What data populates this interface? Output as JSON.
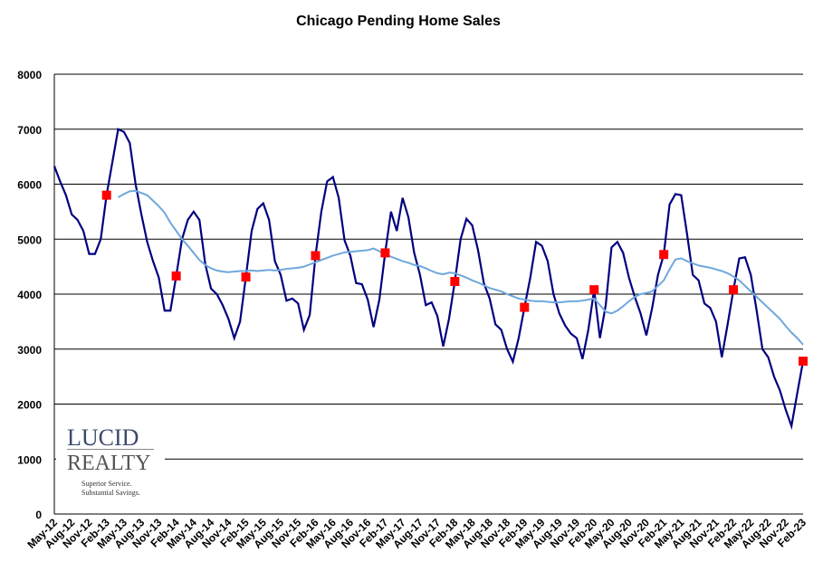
{
  "chart_data": {
    "type": "line",
    "title": "Chicago Pending Home Sales",
    "categories": [
      "May-12",
      null,
      null,
      "Aug-12",
      null,
      null,
      "Nov-12",
      null,
      null,
      "Feb-13",
      null,
      null,
      "May-13",
      null,
      null,
      "Aug-13",
      null,
      null,
      "Nov-13",
      null,
      null,
      "Feb-14",
      null,
      null,
      "May-14",
      null,
      null,
      "Aug-14",
      null,
      null,
      "Nov-14",
      null,
      null,
      "Feb-15",
      null,
      null,
      "May-15",
      null,
      null,
      "Aug-15",
      null,
      null,
      "Nov-15",
      null,
      null,
      "Feb-16",
      null,
      null,
      "May-16",
      null,
      null,
      "Aug-16",
      null,
      null,
      "Nov-16",
      null,
      null,
      "Feb-17",
      null,
      null,
      "May-17",
      null,
      null,
      "Aug-17",
      null,
      null,
      "Nov-17",
      null,
      null,
      "Feb-18",
      null,
      null,
      "May-18",
      null,
      null,
      "Aug-18",
      null,
      null,
      "Nov-18",
      null,
      null,
      "Feb-19",
      null,
      null,
      "May-19",
      null,
      null,
      "Aug-19",
      null,
      null,
      "Nov-19",
      null,
      null,
      "Feb-20",
      null,
      null,
      "May-20",
      null,
      null,
      "Aug-20",
      null,
      null,
      "Nov-20",
      null,
      null,
      "Feb-21",
      null,
      null,
      "May-21",
      null,
      null,
      "Aug-21",
      null,
      null,
      "Nov-21",
      null,
      null,
      "Feb-22",
      null,
      null,
      "May-22",
      null,
      null,
      "Aug-22",
      null,
      null,
      "Nov-22",
      null,
      null,
      "Feb-23"
    ],
    "series": [
      {
        "color": "#000080",
        "values": [
          6330,
          6050,
          5800,
          5450,
          5350,
          5150,
          4730,
          4730,
          5000,
          5800,
          6400,
          7000,
          6950,
          6750,
          6000,
          5450,
          4950,
          4600,
          4300,
          3700,
          3700,
          4330,
          5000,
          5350,
          5500,
          5350,
          4550,
          4100,
          4000,
          3800,
          3550,
          3200,
          3500,
          4310,
          5150,
          5550,
          5650,
          5350,
          4600,
          4350,
          3880,
          3920,
          3830,
          3350,
          3620,
          4700,
          5500,
          6050,
          6130,
          5750,
          4980,
          4700,
          4200,
          4180,
          3900,
          3400,
          3900,
          4750,
          5500,
          5150,
          5750,
          5400,
          4750,
          4350,
          3800,
          3850,
          3600,
          3050,
          3550,
          4230,
          5000,
          5370,
          5250,
          4800,
          4200,
          3920,
          3450,
          3350,
          3000,
          2770,
          3200,
          3760,
          4300,
          4950,
          4880,
          4600,
          4000,
          3650,
          3430,
          3280,
          3200,
          2820,
          3350,
          4080,
          3200,
          3800,
          4850,
          4950,
          4750,
          4300,
          3950,
          3650,
          3250,
          3750,
          4350,
          4720,
          5630,
          5820,
          5800,
          5100,
          4350,
          4250,
          3830,
          3750,
          3500,
          2850,
          3450,
          4080,
          4650,
          4670,
          4350,
          3700,
          3000,
          2850,
          2500,
          2250,
          1900,
          1600,
          2200,
          2780
        ]
      },
      {
        "color": "#6fa8dc",
        "values": [
          null,
          null,
          null,
          null,
          null,
          null,
          null,
          null,
          null,
          null,
          null,
          5760,
          5820,
          5870,
          5880,
          5840,
          5800,
          5700,
          5600,
          5480,
          5300,
          5150,
          5000,
          4880,
          4750,
          4620,
          4530,
          4470,
          4430,
          4410,
          4400,
          4410,
          4420,
          4420,
          4430,
          4420,
          4430,
          4440,
          4430,
          4440,
          4460,
          4470,
          4480,
          4500,
          4540,
          4580,
          4620,
          4660,
          4700,
          4730,
          4760,
          4770,
          4780,
          4790,
          4800,
          4830,
          4780,
          4720,
          4680,
          4640,
          4600,
          4570,
          4530,
          4510,
          4470,
          4420,
          4380,
          4360,
          4390,
          4380,
          4340,
          4300,
          4250,
          4210,
          4160,
          4110,
          4080,
          4050,
          4000,
          3960,
          3920,
          3900,
          3880,
          3870,
          3870,
          3860,
          3850,
          3850,
          3860,
          3870,
          3870,
          3880,
          3900,
          3920,
          3800,
          3680,
          3650,
          3700,
          3780,
          3870,
          3950,
          4000,
          4020,
          4050,
          4150,
          4250,
          4450,
          4630,
          4650,
          4600,
          4560,
          4520,
          4500,
          4480,
          4450,
          4420,
          4380,
          4320,
          4250,
          4150,
          4050,
          3950,
          3850,
          3750,
          3650,
          3550,
          3420,
          3300,
          3200,
          3080
        ]
      },
      {
        "color": "#ff0000",
        "marker": "square",
        "line": false,
        "values": [
          null,
          null,
          null,
          null,
          null,
          null,
          null,
          null,
          null,
          5800,
          null,
          null,
          null,
          null,
          null,
          null,
          null,
          null,
          null,
          null,
          null,
          4330,
          null,
          null,
          null,
          null,
          null,
          null,
          null,
          null,
          null,
          null,
          null,
          4310,
          null,
          null,
          null,
          null,
          null,
          null,
          null,
          null,
          null,
          null,
          null,
          4700,
          null,
          null,
          null,
          null,
          null,
          null,
          null,
          null,
          null,
          null,
          null,
          4750,
          null,
          null,
          null,
          null,
          null,
          null,
          null,
          null,
          null,
          null,
          null,
          4230,
          null,
          null,
          null,
          null,
          null,
          null,
          null,
          null,
          null,
          null,
          null,
          3760,
          null,
          null,
          null,
          null,
          null,
          null,
          null,
          null,
          null,
          null,
          null,
          4080,
          null,
          null,
          null,
          null,
          null,
          null,
          null,
          null,
          null,
          null,
          null,
          4720,
          null,
          null,
          null,
          null,
          null,
          null,
          null,
          null,
          null,
          null,
          null,
          4080,
          null,
          null,
          null,
          null,
          null,
          null,
          null,
          null,
          null,
          null,
          null,
          2780
        ]
      }
    ],
    "ylim": [
      0,
      8000
    ],
    "yticks": [
      0,
      1000,
      2000,
      3000,
      4000,
      5000,
      6000,
      7000,
      8000
    ],
    "grid": true
  },
  "logo": {
    "name1": "LUCID",
    "name2": "REALTY",
    "tagline1": "Superior Service.",
    "tagline2": "Substantial Savings."
  }
}
